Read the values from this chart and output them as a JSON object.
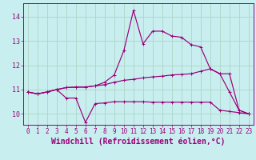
{
  "xlabel": "Windchill (Refroidissement éolien,°C)",
  "bg_color": "#c8eef0",
  "grid_color": "#b0d8c8",
  "line_color": "#990077",
  "xlim": [
    -0.5,
    23.5
  ],
  "ylim": [
    9.55,
    14.55
  ],
  "yticks": [
    10,
    11,
    12,
    13,
    14
  ],
  "xticks": [
    0,
    1,
    2,
    3,
    4,
    5,
    6,
    7,
    8,
    9,
    10,
    11,
    12,
    13,
    14,
    15,
    16,
    17,
    18,
    19,
    20,
    21,
    22,
    23
  ],
  "line1_x": [
    0,
    1,
    2,
    3,
    4,
    5,
    6,
    7,
    8,
    9,
    10,
    11,
    12,
    13,
    14,
    15,
    16,
    17,
    18,
    19,
    20,
    21,
    22,
    23
  ],
  "line1_y": [
    10.9,
    10.82,
    10.9,
    11.0,
    10.65,
    10.65,
    9.65,
    10.42,
    10.45,
    10.5,
    10.5,
    10.5,
    10.5,
    10.48,
    10.48,
    10.48,
    10.48,
    10.48,
    10.48,
    10.48,
    10.15,
    10.1,
    10.05,
    10.0
  ],
  "line2_x": [
    0,
    1,
    2,
    3,
    4,
    5,
    6,
    7,
    8,
    9,
    10,
    11,
    12,
    13,
    14,
    15,
    16,
    17,
    18,
    19,
    20,
    21,
    22,
    23
  ],
  "line2_y": [
    10.9,
    10.82,
    10.9,
    11.0,
    11.08,
    11.1,
    11.1,
    11.15,
    11.2,
    11.3,
    11.38,
    11.42,
    11.48,
    11.52,
    11.55,
    11.6,
    11.62,
    11.65,
    11.75,
    11.85,
    11.65,
    11.65,
    10.15,
    10.0
  ],
  "line3_x": [
    0,
    1,
    2,
    3,
    4,
    5,
    6,
    7,
    8,
    9,
    10,
    11,
    12,
    13,
    14,
    15,
    16,
    17,
    18,
    19,
    20,
    21,
    22,
    23
  ],
  "line3_y": [
    10.9,
    10.82,
    10.9,
    11.0,
    11.08,
    11.1,
    11.1,
    11.15,
    11.3,
    11.6,
    12.6,
    14.25,
    12.88,
    13.4,
    13.4,
    13.2,
    13.15,
    12.85,
    12.75,
    11.85,
    11.65,
    10.9,
    10.15,
    10.0
  ],
  "tick_fontsize": 5.5,
  "label_fontsize": 7.0,
  "linewidth": 0.85,
  "markersize": 3.5
}
